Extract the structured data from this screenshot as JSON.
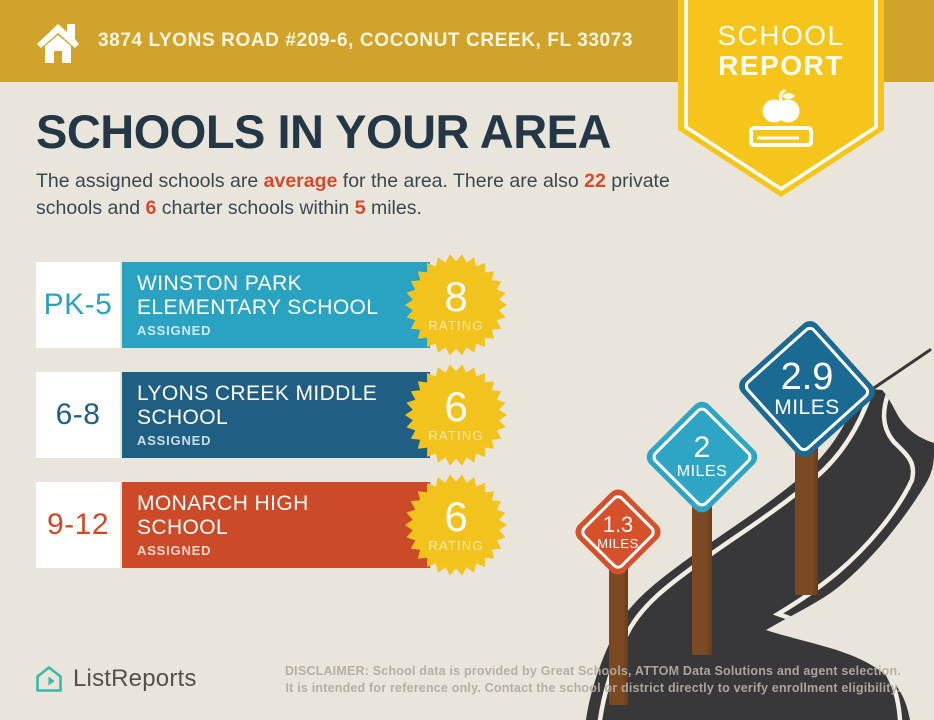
{
  "banner": {
    "address": "3874 LYONS ROAD #209-6, COCONUT CREEK, FL 33073",
    "icon": "home-icon"
  },
  "ribbon": {
    "title_line1": "SCHOOL",
    "title_line2": "REPORT",
    "icon": "apple-on-book-icon"
  },
  "heading": "SCHOOLS IN YOUR AREA",
  "intro": {
    "part1": "The assigned schools are ",
    "highlight1": "average",
    "part2": " for the area. There are also ",
    "highlight2": "22",
    "part3": " private schools and ",
    "highlight3": "6",
    "part4": " charter schools within ",
    "highlight4": "5",
    "part5": " miles."
  },
  "schools": [
    {
      "grades": "PK-5",
      "name": "WINSTON PARK\nELEMENTARY SCHOOL",
      "status": "ASSIGNED",
      "rating": "8",
      "rating_label": "RATING",
      "color": "#2AA3C2"
    },
    {
      "grades": "6-8",
      "name": "LYONS CREEK MIDDLE\nSCHOOL",
      "status": "ASSIGNED",
      "rating": "6",
      "rating_label": "RATING",
      "color": "#1E5F83"
    },
    {
      "grades": "9-12",
      "name": "MONARCH HIGH\nSCHOOL",
      "status": "ASSIGNED",
      "rating": "6",
      "rating_label": "RATING",
      "color": "#CD4A28"
    }
  ],
  "signs": [
    {
      "distance": "1.3",
      "unit": "MILES",
      "color": "#D6502C"
    },
    {
      "distance": "2",
      "unit": "MILES",
      "color": "#2FA5C5"
    },
    {
      "distance": "2.9",
      "unit": "MILES",
      "color": "#1A6A93"
    }
  ],
  "footer": {
    "brand": "ListReports",
    "brand_icon": "house-outline-icon",
    "disclaimer_label": "DISCLAIMER:",
    "disclaimer_line1": " School data is provided by Great Schools, ATTOM Data Solutions and agent selection.",
    "disclaimer_line2": "It is intended for reference only. Contact the school or district directly to verify enrollment eligibility."
  },
  "colors": {
    "banner_gold": "#D1A32A",
    "ribbon_yellow": "#F5C51A",
    "background": "#EAE5DB",
    "heading_navy": "#233746",
    "highlight_orange": "#D5492C",
    "star": "#F2C31C",
    "star_label": "#F8E9AC",
    "road": "#383739",
    "road_line": "#F2EEE4",
    "post_brown": "#7B4A22",
    "logo_teal": "#36B9AE"
  }
}
